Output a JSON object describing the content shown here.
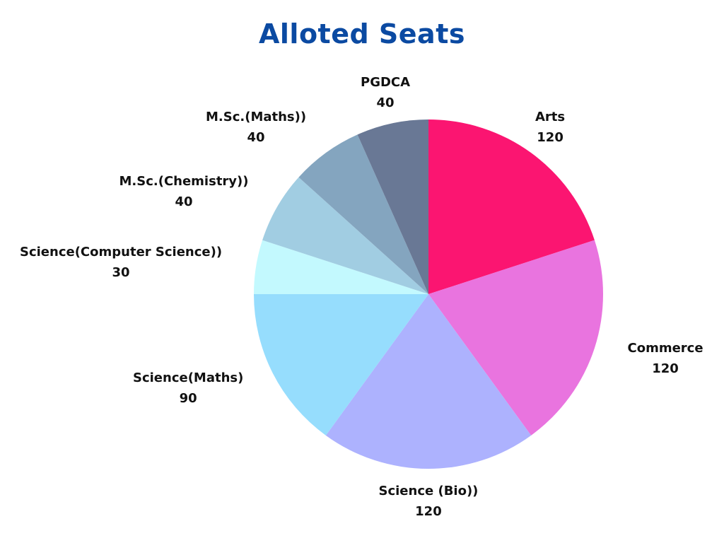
{
  "chart_data": {
    "type": "pie",
    "title": "Alloted Seats",
    "start_angle_deg": 0,
    "direction": "clockwise",
    "slices": [
      {
        "label": "Arts",
        "value": 120,
        "color": "#fb1571"
      },
      {
        "label": "Commerce",
        "value": 120,
        "color": "#e974df"
      },
      {
        "label": "Science (Bio))",
        "value": 120,
        "color": "#adb2fe"
      },
      {
        "label": "Science(Maths)",
        "value": 90,
        "color": "#96ddfd"
      },
      {
        "label": "Science(Computer Science))",
        "value": 30,
        "color": "#c3f9fe"
      },
      {
        "label": "M.Sc.(Chemistry))",
        "value": 40,
        "color": "#a1cde2"
      },
      {
        "label": "M.Sc.(Maths))",
        "value": 40,
        "color": "#84a5bf"
      },
      {
        "label": "PGDCA",
        "value": 40,
        "color": "#697895"
      }
    ]
  }
}
